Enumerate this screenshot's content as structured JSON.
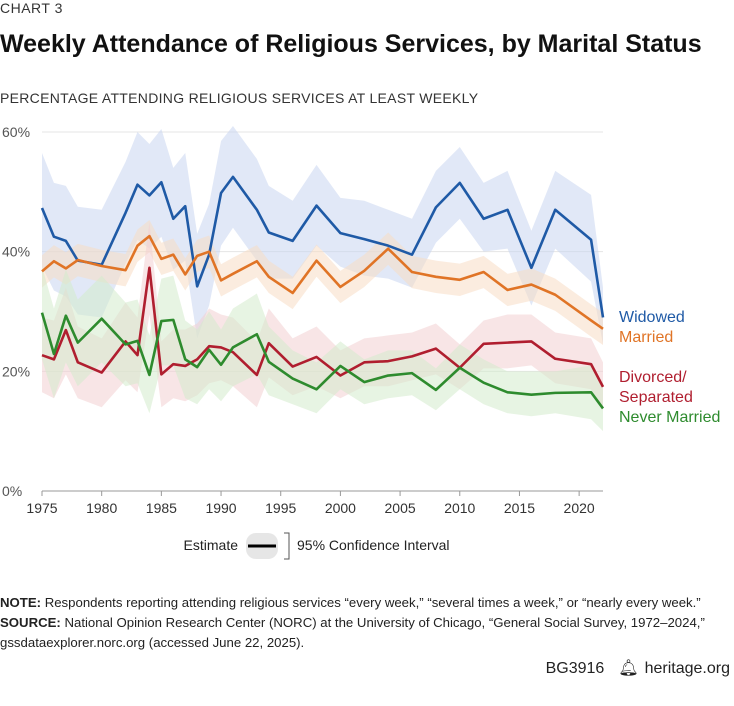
{
  "header": {
    "kicker": "CHART 3",
    "title": "Weekly Attendance of Religious Services, by Marital Status",
    "subtitle": "PERCENTAGE ATTENDING RELIGIOUS SERVICES AT LEAST WEEKLY"
  },
  "legend": {
    "estimate": "Estimate",
    "ci": "95% Confidence Interval"
  },
  "notes": {
    "note_label": "NOTE:",
    "note_text": " Respondents reporting attending religious services “every week,” “several times a week,” or “nearly every week.”",
    "source_label": "SOURCE:",
    "source_text": " National Opinion Research Center (NORC) at the University of Chicago, “General Social Survey, 1972–2024,” gssdataexplorer.norc.org (accessed June 22, 2025)."
  },
  "footer": {
    "code": "BG3916",
    "site": "heritage.org"
  },
  "chart_data": {
    "type": "line",
    "title": "Weekly Attendance of Religious Services, by Marital Status",
    "ylabel": "PERCENTAGE ATTENDING RELIGIOUS SERVICES AT LEAST WEEKLY",
    "xlim": [
      1975,
      2022
    ],
    "ylim": [
      0,
      60
    ],
    "x_ticks": [
      1975,
      1980,
      1985,
      1990,
      1995,
      2000,
      2005,
      2010,
      2015,
      2020
    ],
    "y_ticks": [
      0,
      20,
      40,
      60
    ],
    "y_tick_labels": [
      "0%",
      "20%",
      "40%",
      "60%"
    ],
    "grid": true,
    "legend_position": "bottom-center",
    "series": [
      {
        "name": "Widowed",
        "color": "#1f5aa6",
        "band_color": "#c9d6f1",
        "x": [
          1975,
          1976,
          1977,
          1978,
          1980,
          1982,
          1983,
          1984,
          1985,
          1986,
          1987,
          1988,
          1989,
          1990,
          1991,
          1993,
          1994,
          1996,
          1998,
          2000,
          2002,
          2004,
          2006,
          2008,
          2010,
          2012,
          2014,
          2016,
          2018,
          2021,
          2022
        ],
        "y": [
          47.3,
          42.5,
          41.8,
          38.5,
          37.8,
          46.5,
          51.2,
          49.4,
          51.6,
          45.5,
          47.6,
          34.2,
          39.5,
          49.8,
          52.5,
          47.0,
          43.2,
          41.8,
          47.7,
          43.1,
          42.1,
          41.0,
          39.5,
          47.4,
          51.5,
          45.5,
          47.0,
          37.3,
          47.0,
          42.0,
          29.0
        ],
        "lower": [
          37.5,
          33.5,
          32.5,
          29.5,
          29,
          38,
          42,
          40.5,
          42.5,
          37,
          38.5,
          25.5,
          31,
          41,
          44,
          38.5,
          35.5,
          35.5,
          41,
          37.5,
          36,
          35.5,
          34,
          41.5,
          45.5,
          40,
          40.5,
          31,
          40.5,
          35,
          24.5
        ],
        "upper": [
          56.5,
          51.5,
          51,
          47.5,
          47,
          55,
          60,
          58,
          60.5,
          54,
          56.5,
          43,
          48,
          58.5,
          61,
          55.5,
          51,
          48.5,
          54.5,
          49,
          48.5,
          47,
          45.5,
          53.5,
          57.5,
          51.5,
          53.5,
          43.5,
          53.5,
          49.5,
          34
        ]
      },
      {
        "name": "Married",
        "color": "#e07426",
        "band_color": "#f8dcc4",
        "x": [
          1975,
          1976,
          1977,
          1978,
          1980,
          1982,
          1983,
          1984,
          1985,
          1986,
          1987,
          1988,
          1989,
          1990,
          1991,
          1993,
          1994,
          1996,
          1998,
          2000,
          2002,
          2004,
          2006,
          2008,
          2010,
          2012,
          2014,
          2016,
          2018,
          2021,
          2022
        ],
        "y": [
          36.7,
          38.4,
          37.2,
          38.6,
          37.6,
          36.9,
          41.0,
          42.6,
          38.8,
          39.5,
          36.2,
          39.3,
          40.0,
          35.2,
          36.3,
          38.4,
          35.8,
          33.1,
          38.5,
          34.1,
          36.8,
          40.5,
          36.6,
          35.8,
          35.3,
          36.6,
          33.6,
          34.5,
          32.8,
          28.5,
          27.1
        ],
        "lower": [
          34,
          35.7,
          34.5,
          35.9,
          34.9,
          34.2,
          38.3,
          39.9,
          36.1,
          36.8,
          33.5,
          36.6,
          37.3,
          32.5,
          33.6,
          35.7,
          33.1,
          30.4,
          35.8,
          31.4,
          34.1,
          37.8,
          33.9,
          33.1,
          32.6,
          33.9,
          30.9,
          31.8,
          30.1,
          25.8,
          24.4
        ],
        "upper": [
          39.4,
          41.1,
          39.9,
          41.3,
          40.3,
          39.6,
          43.7,
          45.3,
          41.5,
          42.2,
          38.9,
          42,
          42.7,
          37.9,
          39,
          41.1,
          38.5,
          35.8,
          41.2,
          36.8,
          39.5,
          43.2,
          39.3,
          38.5,
          38,
          39.3,
          36.3,
          37.2,
          35.5,
          31.2,
          29.8
        ]
      },
      {
        "name": "Divorced/ Separated",
        "color": "#b01e2f",
        "band_color": "#f3cfd2",
        "x": [
          1975,
          1976,
          1977,
          1978,
          1980,
          1982,
          1983,
          1984,
          1985,
          1986,
          1987,
          1988,
          1989,
          1990,
          1991,
          1993,
          1994,
          1996,
          1998,
          2000,
          2002,
          2004,
          2006,
          2008,
          2010,
          2012,
          2014,
          2016,
          2018,
          2021,
          2022
        ],
        "y": [
          22.7,
          22.0,
          26.9,
          21.5,
          19.8,
          25.0,
          22.7,
          37.3,
          19.5,
          21.2,
          20.9,
          22.0,
          24.2,
          24.0,
          23.2,
          19.4,
          24.7,
          20.8,
          22.4,
          19.3,
          21.5,
          21.7,
          22.5,
          23.8,
          20.6,
          24.6,
          24.8,
          25.0,
          22.1,
          21.2,
          17.4
        ],
        "lower": [
          16.5,
          15.5,
          19.5,
          15.5,
          14,
          18.5,
          16.5,
          29.5,
          14,
          15.5,
          15,
          16,
          18,
          18.5,
          17.5,
          14,
          19,
          16,
          17.5,
          15.5,
          17.5,
          17.5,
          18.5,
          19.5,
          17,
          20.5,
          20.5,
          21,
          18,
          17,
          13.5
        ],
        "upper": [
          29,
          28.5,
          34,
          27.5,
          25.5,
          31.5,
          29,
          45,
          25,
          27,
          27,
          28,
          30.5,
          29.5,
          29,
          25,
          30.5,
          25.5,
          27.5,
          23.5,
          25.5,
          26,
          26.5,
          28,
          24.5,
          28.5,
          29.5,
          29.5,
          26.5,
          25.5,
          21.5
        ]
      },
      {
        "name": "Never Married",
        "color": "#2e8b2e",
        "band_color": "#d4ebcc",
        "x": [
          1975,
          1976,
          1977,
          1978,
          1980,
          1982,
          1983,
          1984,
          1985,
          1986,
          1987,
          1988,
          1989,
          1990,
          1991,
          1993,
          1994,
          1996,
          1998,
          2000,
          2002,
          2004,
          2006,
          2008,
          2010,
          2012,
          2014,
          2016,
          2018,
          2021,
          2022
        ],
        "y": [
          29.8,
          22.9,
          29.3,
          24.8,
          28.8,
          24.5,
          25.1,
          19.4,
          28.4,
          28.6,
          22.0,
          20.7,
          23.6,
          21.1,
          24.0,
          26.2,
          21.6,
          18.8,
          17.0,
          20.9,
          18.2,
          19.3,
          19.7,
          16.9,
          20.6,
          18.1,
          16.5,
          16.1,
          16.4,
          16.5,
          13.8
        ],
        "lower": [
          22,
          15.5,
          21.5,
          17.5,
          21.5,
          17.5,
          18,
          13,
          21,
          21,
          15.5,
          14.5,
          17,
          15,
          17.5,
          19.5,
          16,
          14.5,
          13,
          17,
          14.5,
          15.5,
          16,
          13.5,
          17,
          14.5,
          13,
          12.5,
          13,
          12,
          10
        ],
        "upper": [
          37.5,
          30.5,
          37,
          32,
          36,
          31.5,
          32,
          26,
          35.5,
          36,
          28.5,
          27,
          30,
          27,
          30.5,
          33,
          27.5,
          23.5,
          21.5,
          25,
          22,
          23.5,
          23.5,
          20.5,
          24.5,
          22,
          20,
          20,
          20,
          21,
          18
        ]
      }
    ]
  }
}
